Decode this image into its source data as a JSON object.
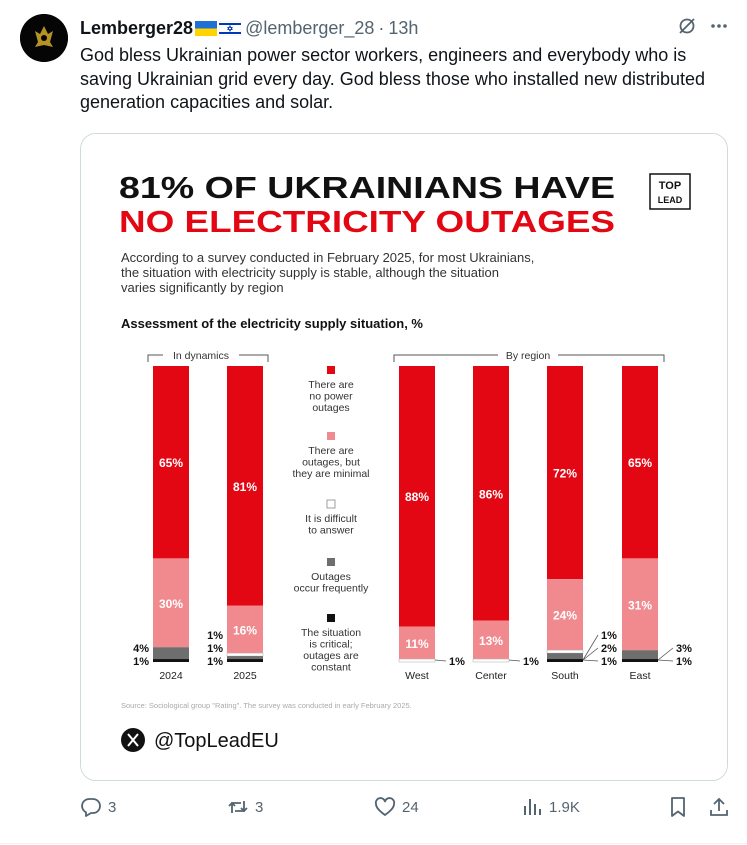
{
  "tweet": {
    "display_name": "Lemberger28",
    "handle": "@lemberger_28",
    "separator": "·",
    "time": "13h",
    "text": "God bless Ukrainian power sector workers, engineers and everybody who is saving Ukrainian grid every day. God bless those who installed new distributed generation capacities and solar.",
    "stats": {
      "replies": "3",
      "reposts": "3",
      "likes": "24",
      "views": "1.9K"
    },
    "icons": [
      "grok-icon",
      "more-icon",
      "reply-icon",
      "repost-icon",
      "like-icon",
      "views-icon",
      "bookmark-icon",
      "share-icon"
    ]
  },
  "infographic": {
    "title_line1": "81% OF UKRAINIANS HAVE",
    "title_line2": "NO ELECTRICITY OUTAGES",
    "logo_line1": "TOP",
    "logo_line2": "LEAD",
    "subtitle_lines": [
      "According to a survey conducted in February 2025, for most Ukrainians,",
      "the situation with electricity supply is stable, although the situation",
      "varies significantly by region"
    ],
    "source": "Source: Sociological group \"Rating\". The survey was conducted in early February 2025.",
    "social_handle": "@TopLeadEU",
    "colors": {
      "title_black": "#111111",
      "title_red": "#e30613",
      "no_outages": "#e30613",
      "minimal": "#f08a8f",
      "difficult": "#ffffff",
      "frequent": "#6e6e6e",
      "critical": "#111111"
    }
  },
  "chart_data": {
    "type": "bar",
    "stacked": true,
    "title": "Assessment of the electricity supply situation, %",
    "groups": [
      {
        "label": "In dynamics",
        "categories": [
          "2024",
          "2025"
        ]
      },
      {
        "label": "By region",
        "categories": [
          "West",
          "Center",
          "South",
          "East"
        ]
      }
    ],
    "categories": [
      "2024",
      "2025",
      "West",
      "Center",
      "South",
      "East"
    ],
    "series": [
      {
        "name": "There are no power outages",
        "legend_lines": [
          "There are",
          "no power",
          "outages"
        ],
        "values": [
          65,
          81,
          88,
          86,
          72,
          65
        ]
      },
      {
        "name": "There are outages, but they are minimal",
        "legend_lines": [
          "There are",
          "outages, but",
          "they are minimal"
        ],
        "values": [
          30,
          16,
          11,
          13,
          24,
          31
        ]
      },
      {
        "name": "It is difficult to answer",
        "legend_lines": [
          "It is difficult",
          "to answer"
        ],
        "values": [
          0,
          1,
          1,
          1,
          1,
          0
        ]
      },
      {
        "name": "Outages occur frequently",
        "legend_lines": [
          "Outages",
          "occur frequently"
        ],
        "values": [
          4,
          1,
          0,
          0,
          2,
          3
        ]
      },
      {
        "name": "The situation is critical; outages are constant",
        "legend_lines": [
          "The situation",
          "is critical;",
          "outages are",
          "constant"
        ],
        "values": [
          1,
          1,
          0,
          0,
          1,
          1
        ]
      }
    ],
    "labels": {
      "2024": {
        "no_outages": "65%",
        "minimal": "30%",
        "side": [
          "4%",
          "1%"
        ]
      },
      "2025": {
        "no_outages": "81%",
        "minimal": "16%",
        "side": [
          "1%",
          "1%",
          "1%"
        ]
      },
      "West": {
        "no_outages": "88%",
        "minimal": "11%",
        "side": [
          "1%"
        ]
      },
      "Center": {
        "no_outages": "86%",
        "minimal": "13%",
        "side": [
          "1%"
        ]
      },
      "South": {
        "no_outages": "72%",
        "minimal": "24%",
        "side": [
          "1%",
          "2%",
          "1%"
        ]
      },
      "East": {
        "no_outages": "65%",
        "minimal": "31%",
        "side": [
          "3%",
          "1%"
        ]
      }
    },
    "ylim": [
      0,
      100
    ]
  }
}
